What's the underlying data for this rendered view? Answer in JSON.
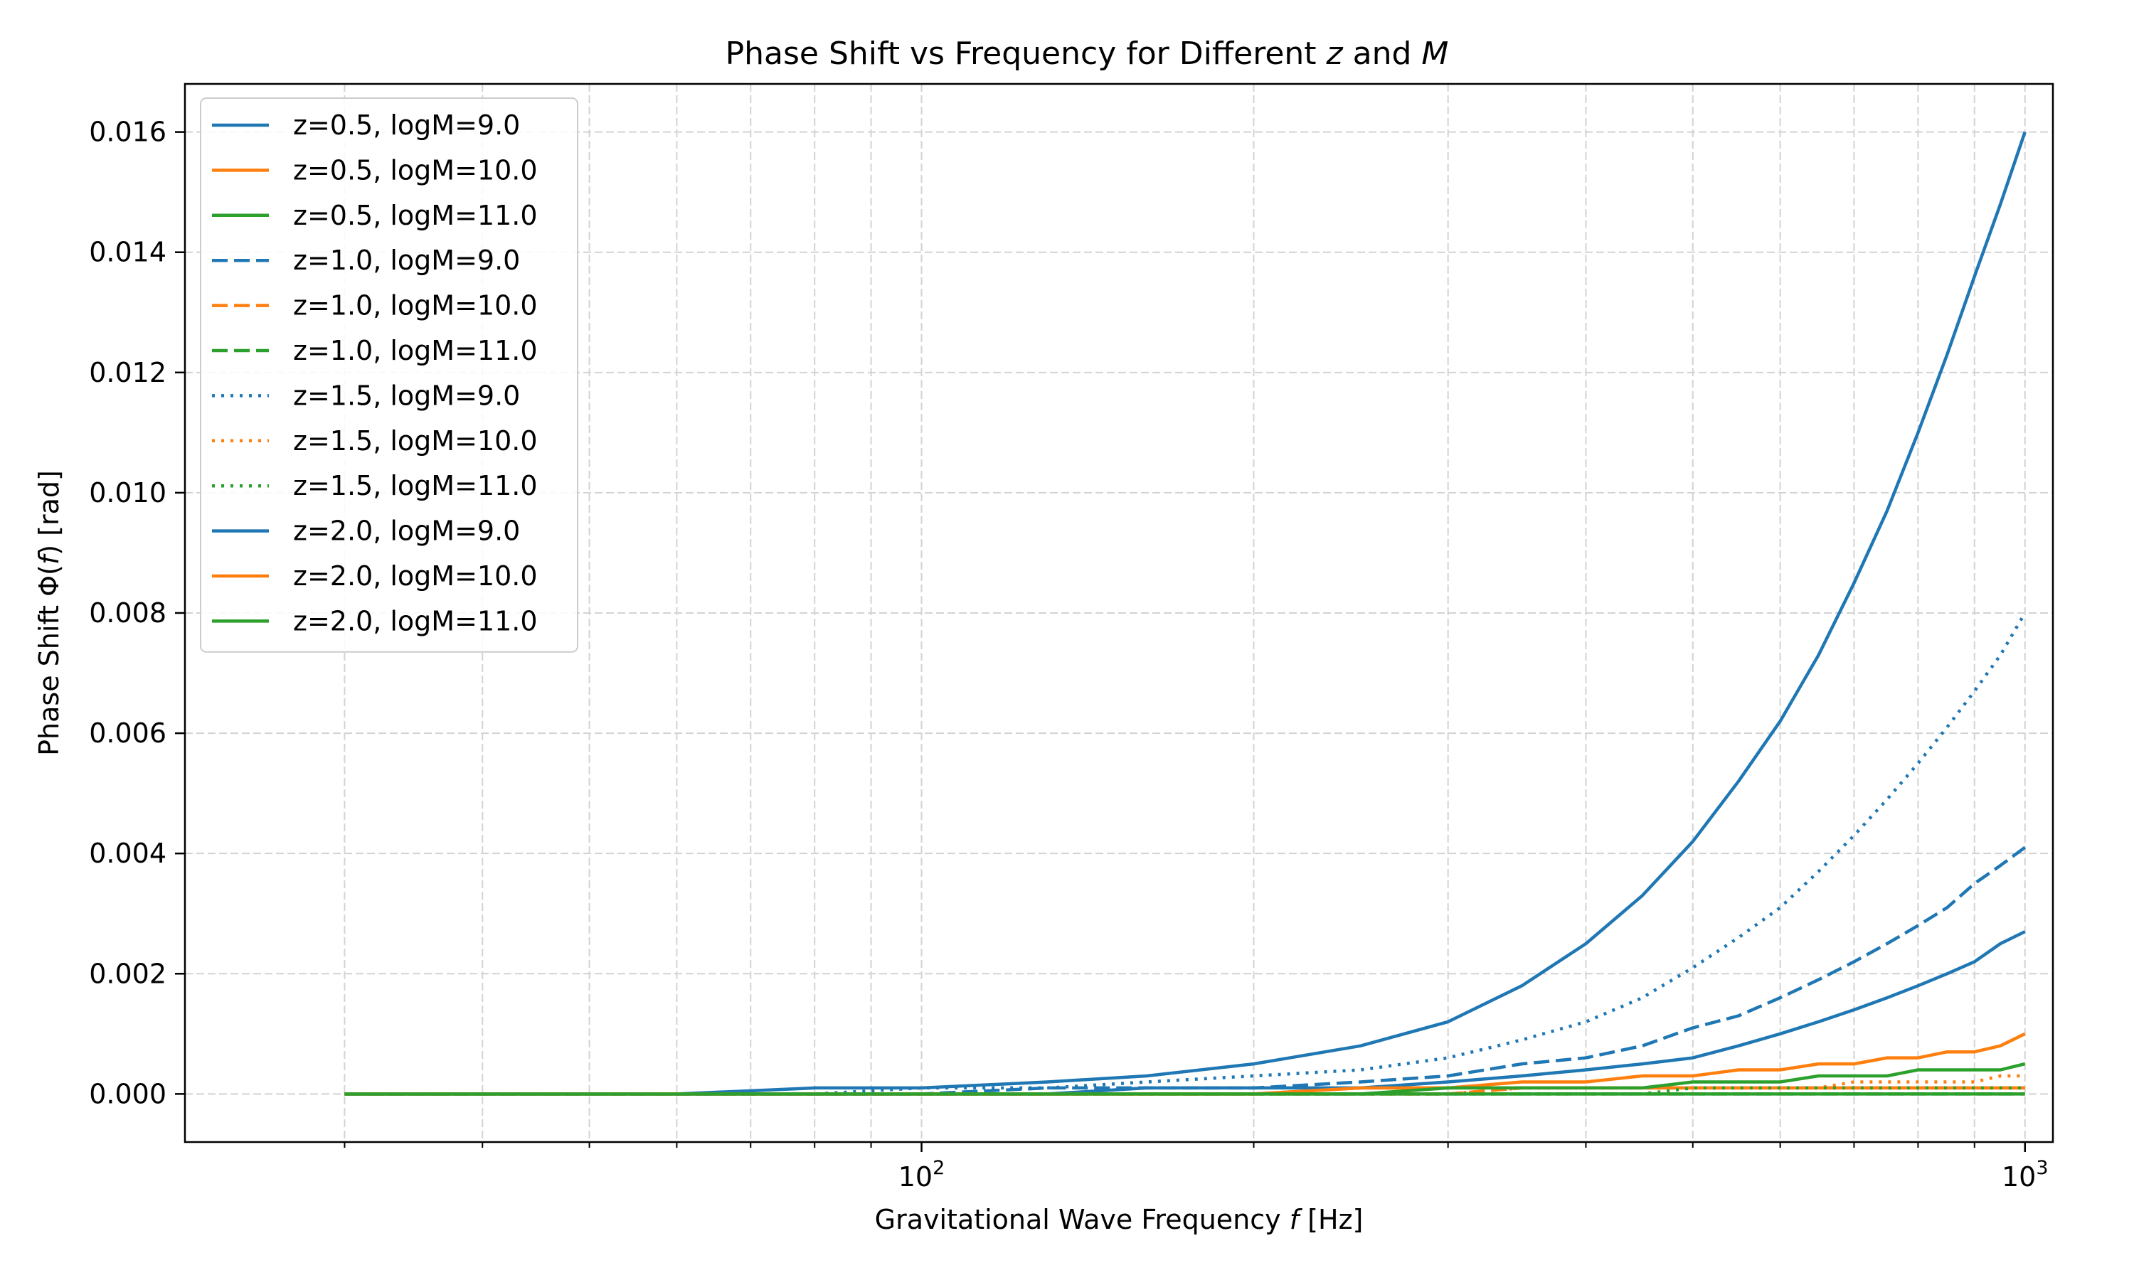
{
  "chart_data": {
    "type": "line",
    "title": "Phase Shift vs Frequency for Different z and M",
    "title_parts": {
      "pre": "Phase Shift vs Frequency for Different ",
      "z": "z",
      "mid": " and ",
      "M": "M"
    },
    "xlabel": "Gravitational Wave Frequency f [Hz]",
    "xlabel_parts": {
      "pre": "Gravitational Wave Frequency ",
      "f": "f",
      "post": " [Hz]"
    },
    "ylabel": "Phase Shift Φ(f) [rad]",
    "ylabel_parts": {
      "pre": "Phase Shift Φ(",
      "f": "f",
      "post": ") [rad]"
    },
    "x_scale": "log",
    "xlim": [
      21.5,
      1060
    ],
    "ylim": [
      -0.0008,
      0.0168
    ],
    "x_ticks": [
      {
        "value": 100,
        "base": "10",
        "exp": "2"
      },
      {
        "value": 1000,
        "base": "10",
        "exp": "3"
      }
    ],
    "y_ticks": [
      {
        "value": 0.0,
        "label": "0.000"
      },
      {
        "value": 0.002,
        "label": "0.002"
      },
      {
        "value": 0.004,
        "label": "0.004"
      },
      {
        "value": 0.006,
        "label": "0.006"
      },
      {
        "value": 0.008,
        "label": "0.008"
      },
      {
        "value": 0.01,
        "label": "0.010"
      },
      {
        "value": 0.012,
        "label": "0.012"
      },
      {
        "value": 0.014,
        "label": "0.014"
      },
      {
        "value": 0.016,
        "label": "0.016"
      }
    ],
    "grid": true,
    "legend_position": "top-left",
    "x": [
      30,
      40,
      50,
      60,
      80,
      100,
      130,
      160,
      200,
      250,
      300,
      350,
      400,
      450,
      500,
      550,
      600,
      650,
      700,
      750,
      800,
      850,
      900,
      950,
      1000
    ],
    "series": [
      {
        "name": "z=0.5, logM=9.0",
        "color": "#1f77b4",
        "style": "solid",
        "values": [
          0.0,
          0.0,
          0.0,
          0.0,
          0.0001,
          0.0001,
          0.0002,
          0.0003,
          0.0005,
          0.0008,
          0.0012,
          0.0018,
          0.0025,
          0.0033,
          0.0042,
          0.0052,
          0.0062,
          0.0073,
          0.0085,
          0.0097,
          0.011,
          0.0123,
          0.0136,
          0.0148,
          0.016
        ]
      },
      {
        "name": "z=0.5, logM=10.0",
        "color": "#ff7f0e",
        "style": "solid",
        "values": [
          0.0,
          0.0,
          0.0,
          0.0,
          0.0,
          0.0,
          0.0,
          0.0,
          0.0,
          0.0001,
          0.0001,
          0.0001,
          0.0001,
          0.0001,
          0.0001,
          0.0001,
          0.0001,
          0.0001,
          0.0001,
          0.0001,
          0.0001,
          0.0001,
          0.0001,
          0.0001,
          0.0001
        ]
      },
      {
        "name": "z=0.5, logM=11.0",
        "color": "#2ca02c",
        "style": "solid",
        "values": [
          0.0,
          0.0,
          0.0,
          0.0,
          0.0,
          0.0,
          0.0,
          0.0,
          0.0,
          0.0,
          0.0,
          0.0,
          0.0,
          0.0,
          0.0,
          0.0,
          0.0,
          0.0,
          0.0,
          0.0,
          0.0,
          0.0,
          0.0,
          0.0,
          0.0
        ]
      },
      {
        "name": "z=1.0, logM=9.0",
        "color": "#1f77b4",
        "style": "dashed",
        "values": [
          0.0,
          0.0,
          0.0,
          0.0,
          0.0,
          0.0,
          0.0001,
          0.0001,
          0.0001,
          0.0002,
          0.0003,
          0.0005,
          0.0006,
          0.0008,
          0.0011,
          0.0013,
          0.0016,
          0.0019,
          0.0022,
          0.0025,
          0.0028,
          0.0031,
          0.0035,
          0.0038,
          0.0041
        ]
      },
      {
        "name": "z=1.0, logM=10.0",
        "color": "#ff7f0e",
        "style": "dashed",
        "values": [
          0.0,
          0.0,
          0.0,
          0.0,
          0.0,
          0.0,
          0.0,
          0.0,
          0.0,
          0.0,
          0.0,
          0.0001,
          0.0001,
          0.0001,
          0.0001,
          0.0001,
          0.0001,
          0.0001,
          0.0001,
          0.0001,
          0.0001,
          0.0001,
          0.0001,
          0.0001,
          0.0001
        ]
      },
      {
        "name": "z=1.0, logM=11.0",
        "color": "#2ca02c",
        "style": "dashed",
        "values": [
          0.0,
          0.0,
          0.0,
          0.0,
          0.0,
          0.0,
          0.0,
          0.0,
          0.0,
          0.0,
          0.0,
          0.0,
          0.0,
          0.0,
          0.0,
          0.0,
          0.0,
          0.0,
          0.0,
          0.0,
          0.0,
          0.0,
          0.0,
          0.0,
          0.0
        ]
      },
      {
        "name": "z=1.5, logM=9.0",
        "color": "#1f77b4",
        "style": "dotted",
        "values": [
          0.0,
          0.0,
          0.0,
          0.0,
          0.0,
          0.0001,
          0.0001,
          0.0002,
          0.0003,
          0.0004,
          0.0006,
          0.0009,
          0.0012,
          0.0016,
          0.0021,
          0.0026,
          0.0031,
          0.0037,
          0.0043,
          0.0049,
          0.0055,
          0.0061,
          0.0067,
          0.0073,
          0.008
        ]
      },
      {
        "name": "z=1.5, logM=10.0",
        "color": "#ff7f0e",
        "style": "dotted",
        "values": [
          0.0,
          0.0,
          0.0,
          0.0,
          0.0,
          0.0,
          0.0,
          0.0,
          0.0,
          0.0,
          0.0,
          0.0001,
          0.0001,
          0.0001,
          0.0001,
          0.0001,
          0.0001,
          0.0001,
          0.0002,
          0.0002,
          0.0002,
          0.0002,
          0.0002,
          0.0003,
          0.0003
        ]
      },
      {
        "name": "z=1.5, logM=11.0",
        "color": "#2ca02c",
        "style": "dotted",
        "values": [
          0.0,
          0.0,
          0.0,
          0.0,
          0.0,
          0.0,
          0.0,
          0.0,
          0.0,
          0.0,
          0.0,
          0.0,
          0.0,
          0.0,
          0.0001,
          0.0001,
          0.0001,
          0.0001,
          0.0001,
          0.0001,
          0.0001,
          0.0001,
          0.0001,
          0.0001,
          0.0001
        ]
      },
      {
        "name": "z=2.0, logM=9.0",
        "color": "#1f77b4",
        "style": "solid",
        "values": [
          0.0,
          0.0,
          0.0,
          0.0,
          0.0,
          0.0,
          0.0,
          0.0001,
          0.0001,
          0.0001,
          0.0002,
          0.0003,
          0.0004,
          0.0005,
          0.0006,
          0.0008,
          0.001,
          0.0012,
          0.0014,
          0.0016,
          0.0018,
          0.002,
          0.0022,
          0.0025,
          0.0027
        ]
      },
      {
        "name": "z=2.0, logM=10.0",
        "color": "#ff7f0e",
        "style": "solid",
        "values": [
          0.0,
          0.0,
          0.0,
          0.0,
          0.0,
          0.0,
          0.0,
          0.0,
          0.0,
          0.0001,
          0.0001,
          0.0002,
          0.0002,
          0.0003,
          0.0003,
          0.0004,
          0.0004,
          0.0005,
          0.0005,
          0.0006,
          0.0006,
          0.0007,
          0.0007,
          0.0008,
          0.001
        ]
      },
      {
        "name": "z=2.0, logM=11.0",
        "color": "#2ca02c",
        "style": "solid",
        "values": [
          0.0,
          0.0,
          0.0,
          0.0,
          0.0,
          0.0,
          0.0,
          0.0,
          0.0,
          0.0,
          0.0001,
          0.0001,
          0.0001,
          0.0001,
          0.0002,
          0.0002,
          0.0002,
          0.0003,
          0.0003,
          0.0003,
          0.0004,
          0.0004,
          0.0004,
          0.0004,
          0.0005
        ]
      }
    ]
  }
}
